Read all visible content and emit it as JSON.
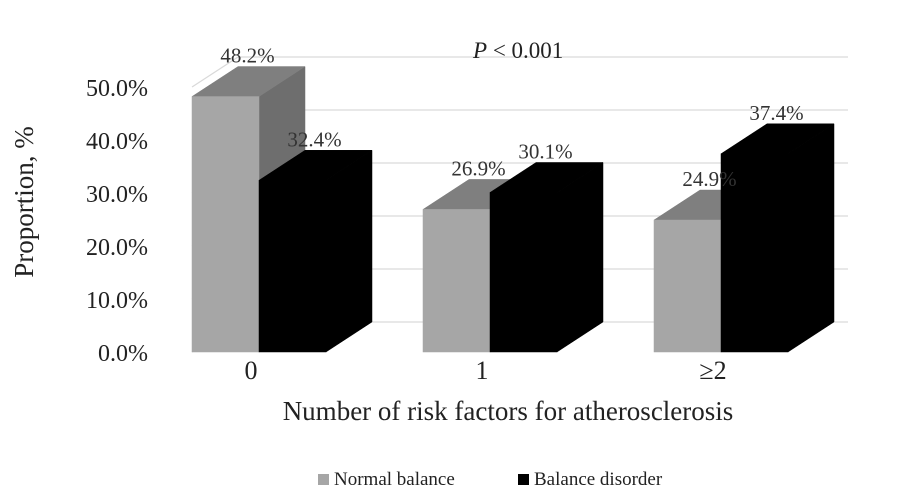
{
  "chart_data": {
    "type": "bar",
    "categories": [
      "0",
      "1",
      "≥2"
    ],
    "series": [
      {
        "name": "Normal balance",
        "values": [
          48.2,
          26.9,
          24.9
        ],
        "labels": [
          "48.2%",
          "26.9%",
          "24.9%"
        ],
        "color": "#a6a6a6",
        "top_color": "#7f7f7f",
        "side_color": "#6e6e6e"
      },
      {
        "name": "Balance disorder",
        "values": [
          32.4,
          30.1,
          37.4
        ],
        "labels": [
          "32.4%",
          "30.1%",
          "37.4%"
        ],
        "color": "#000000",
        "top_color": "#000000",
        "side_color": "#000000"
      }
    ],
    "ylim": [
      0,
      50
    ],
    "yticks": [
      0,
      10,
      20,
      30,
      40,
      50
    ],
    "ytick_labels": [
      "0.0%",
      "10.0%",
      "20.0%",
      "30.0%",
      "40.0%",
      "50.0%"
    ],
    "xlabel": "Number of risk factors for atherosclerosis",
    "ylabel": "Proportion, %",
    "annotation": {
      "italic": "P",
      "rest": " < 0.001"
    },
    "grid": true,
    "legend_position": "bottom",
    "three_d": true
  }
}
